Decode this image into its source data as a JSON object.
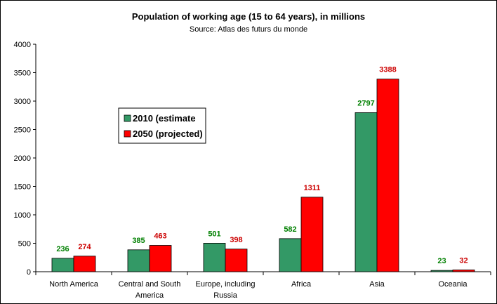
{
  "chart_data": {
    "type": "bar",
    "title": "Population of working age (15 to 64 years), in millions",
    "subtitle": "Source: Atlas des futurs du monde",
    "categories": [
      [
        "North America"
      ],
      [
        "Central and South",
        "America"
      ],
      [
        "Europe, including",
        "Russia"
      ],
      [
        "Africa"
      ],
      [
        "Asia"
      ],
      [
        "Oceania"
      ]
    ],
    "series": [
      {
        "name": "2010 (estimate",
        "values": [
          236,
          385,
          501,
          582,
          2797,
          23
        ],
        "color": "#339966",
        "label_color": "#008000"
      },
      {
        "name": "2050 (projected)",
        "values": [
          274,
          463,
          398,
          1311,
          3388,
          32
        ],
        "color": "#ff0000",
        "label_color": "#cc0000"
      }
    ],
    "ylim": [
      0,
      4000
    ],
    "yticks": [
      0,
      500,
      1000,
      1500,
      2000,
      2500,
      3000,
      3500,
      4000
    ],
    "grid": false,
    "legend_position": "inside-left"
  }
}
